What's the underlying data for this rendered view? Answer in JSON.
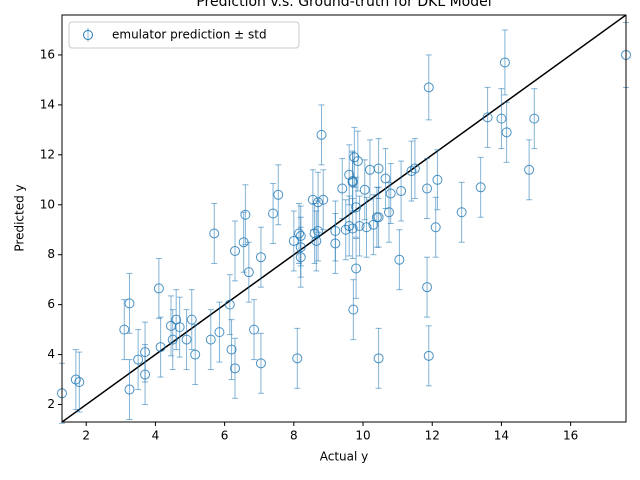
{
  "chart_data": {
    "type": "errorbar-scatter",
    "title": "Prediction v.s. Ground-truth for DKL Model",
    "xlabel": "Actual y",
    "ylabel": "Predicted y",
    "legend": "upper left",
    "series": [
      {
        "name": "emulator prediction ± std",
        "color": "#1f77b4",
        "x": [
          1.3,
          1.7,
          1.8,
          3.1,
          3.25,
          3.25,
          3.5,
          3.7,
          3.7,
          4.1,
          4.15,
          4.45,
          4.5,
          4.6,
          4.7,
          4.9,
          5.05,
          5.15,
          5.6,
          5.7,
          5.85,
          6.15,
          6.2,
          6.3,
          6.3,
          6.55,
          6.6,
          6.7,
          6.85,
          7.05,
          7.05,
          7.4,
          7.55,
          8.0,
          8.1,
          8.15,
          8.2,
          8.2,
          8.2,
          8.55,
          8.6,
          8.65,
          8.7,
          8.7,
          8.8,
          8.85,
          9.2,
          9.2,
          9.4,
          9.5,
          9.6,
          9.6,
          9.7,
          9.7,
          9.7,
          9.72,
          9.75,
          9.8,
          9.8,
          9.85,
          9.9,
          10.05,
          10.1,
          10.2,
          10.3,
          10.4,
          10.45,
          10.45,
          10.45,
          10.65,
          10.75,
          10.8,
          11.05,
          11.1,
          11.4,
          11.5,
          11.85,
          11.85,
          11.9,
          11.9,
          12.1,
          12.15,
          12.85,
          13.4,
          13.6,
          14.0,
          14.1,
          14.15,
          14.8,
          14.95,
          17.6
        ],
        "values": [
          2.45,
          3.0,
          2.9,
          5.0,
          6.05,
          2.6,
          3.8,
          4.1,
          3.2,
          6.65,
          4.3,
          5.15,
          4.6,
          5.4,
          5.1,
          4.6,
          5.4,
          4.0,
          4.6,
          8.85,
          4.9,
          6.0,
          4.2,
          8.15,
          3.45,
          8.5,
          9.6,
          7.3,
          5.0,
          7.9,
          3.65,
          9.65,
          10.4,
          8.55,
          3.85,
          8.85,
          8.3,
          7.9,
          8.75,
          10.2,
          8.85,
          8.55,
          8.95,
          10.1,
          12.8,
          10.2,
          8.45,
          8.95,
          10.65,
          9.0,
          9.15,
          11.2,
          9.05,
          10.95,
          10.9,
          5.8,
          11.9,
          9.9,
          7.45,
          11.75,
          9.15,
          10.6,
          9.1,
          11.4,
          9.2,
          9.5,
          9.5,
          11.45,
          3.85,
          11.05,
          9.7,
          10.45,
          7.8,
          10.55,
          11.35,
          11.45,
          10.65,
          6.7,
          14.7,
          3.95,
          9.1,
          11.0,
          9.7,
          10.7,
          13.5,
          13.45,
          15.7,
          12.9,
          11.4,
          13.45,
          16.0
        ],
        "yerr": [
          1.2,
          1.2,
          1.2,
          1.2,
          1.2,
          1.2,
          1.2,
          1.2,
          1.2,
          1.2,
          1.2,
          1.2,
          1.2,
          1.2,
          1.2,
          1.2,
          1.2,
          1.2,
          1.2,
          1.2,
          1.2,
          1.2,
          1.2,
          1.2,
          1.2,
          1.2,
          1.2,
          1.2,
          1.2,
          1.2,
          1.2,
          1.2,
          1.2,
          1.2,
          1.2,
          1.2,
          1.2,
          1.2,
          1.2,
          1.2,
          1.2,
          1.2,
          1.2,
          1.2,
          1.2,
          1.2,
          1.2,
          1.2,
          1.2,
          1.2,
          1.2,
          1.2,
          1.2,
          1.2,
          1.2,
          1.2,
          1.2,
          1.2,
          1.2,
          1.2,
          1.2,
          1.2,
          1.2,
          1.2,
          1.2,
          1.2,
          1.2,
          1.2,
          1.2,
          1.2,
          1.2,
          1.2,
          1.2,
          1.2,
          1.2,
          1.2,
          1.2,
          1.2,
          1.3,
          1.2,
          1.2,
          1.2,
          1.2,
          1.2,
          1.2,
          1.2,
          1.3,
          1.2,
          1.2,
          1.2,
          1.3
        ]
      }
    ],
    "xlim": [
      1.3,
      17.6
    ],
    "ylim": [
      1.3,
      17.6
    ],
    "xticks": [
      2,
      4,
      6,
      8,
      10,
      12,
      14,
      16
    ],
    "yticks": [
      2,
      4,
      6,
      8,
      10,
      12,
      14,
      16
    ]
  }
}
